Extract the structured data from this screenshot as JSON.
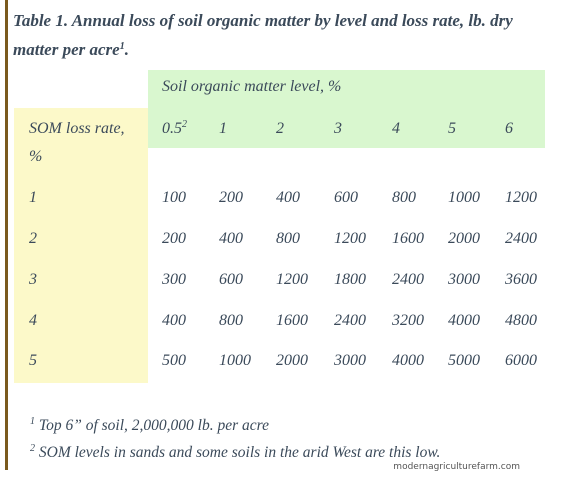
{
  "title": {
    "text": "Table 1. Annual loss of soil organic matter by level and loss rate, lb. dry matter per acre",
    "superscript": "1",
    "end_punct": "."
  },
  "table": {
    "group_header": "Soil organic matter level, %",
    "row_header_line1": "SOM loss rate,",
    "row_header_line2": "%",
    "levels": [
      "0.5",
      "1",
      "2",
      "3",
      "4",
      "5",
      "6"
    ],
    "level_first_superscript": "2",
    "rows": [
      {
        "rate": "1",
        "values": [
          "100",
          "200",
          "400",
          "600",
          "800",
          "1000",
          "1200"
        ]
      },
      {
        "rate": "2",
        "values": [
          "200",
          "400",
          "800",
          "1200",
          "1600",
          "2000",
          "2400"
        ]
      },
      {
        "rate": "3",
        "values": [
          "300",
          "600",
          "1200",
          "1800",
          "2400",
          "3000",
          "3600"
        ]
      },
      {
        "rate": "4",
        "values": [
          "400",
          "800",
          "1600",
          "2400",
          "3200",
          "4000",
          "4800"
        ]
      },
      {
        "rate": "5",
        "values": [
          "500",
          "1000",
          "2000",
          "3000",
          "4000",
          "5000",
          "6000"
        ]
      }
    ]
  },
  "footnotes": [
    {
      "marker": "1",
      "text": " Top 6” of soil, 2,000,000 lb. per acre"
    },
    {
      "marker": "2",
      "text": " SOM levels in sands and some soils in the arid West are this low."
    }
  ],
  "watermark": "modernagriculturefarm.com",
  "colors": {
    "header_green": "#d9f7cf",
    "row_label_yellow": "#fcf9c9",
    "text": "#3b4a5a",
    "left_rule": "#7a5a1e"
  }
}
